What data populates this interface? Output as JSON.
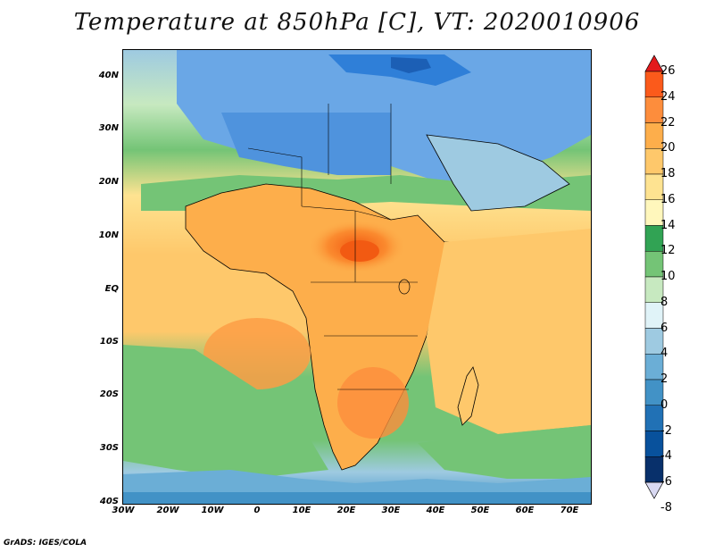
{
  "title": "Temperature at 850hPa [C], VT: 2020010906",
  "footer": "GrADS: IGES/COLA",
  "axes": {
    "lat_labels": [
      "40N",
      "30N",
      "20N",
      "10N",
      "EQ",
      "10S",
      "20S",
      "30S",
      "40S"
    ],
    "lon_labels": [
      "30W",
      "20W",
      "10W",
      "0",
      "10E",
      "20E",
      "30E",
      "40E",
      "50E",
      "60E",
      "70E"
    ]
  },
  "colorbar": {
    "labels": [
      "26",
      "24",
      "22",
      "20",
      "18",
      "16",
      "14",
      "12",
      "10",
      "8",
      "6",
      "4",
      "2",
      "0",
      "-2",
      "-4",
      "-6",
      "-8"
    ],
    "colors": [
      "#e31a1c",
      "#fb5a1b",
      "#fd8d3c",
      "#fdae4b",
      "#fec86b",
      "#fee391",
      "#fff7bc",
      "#31a354",
      "#74c476",
      "#c7e9c0",
      "#e0f3f8",
      "#9ecae1",
      "#6baed6",
      "#4292c6",
      "#2171b5",
      "#08519c",
      "#08306b",
      "#d9d9f2"
    ],
    "unit": "C"
  },
  "map_colors": {
    "ocean_warm": "#fdd38a",
    "land_hot": "#fb8b2f",
    "land_very_hot": "#f25a12",
    "desert_cool": "#6aa7e6",
    "med_cold": "#2f7fd8",
    "green_band": "#6fc46d",
    "south_ocean": "#6fc46d",
    "antarctic": "#4aa0e0"
  }
}
